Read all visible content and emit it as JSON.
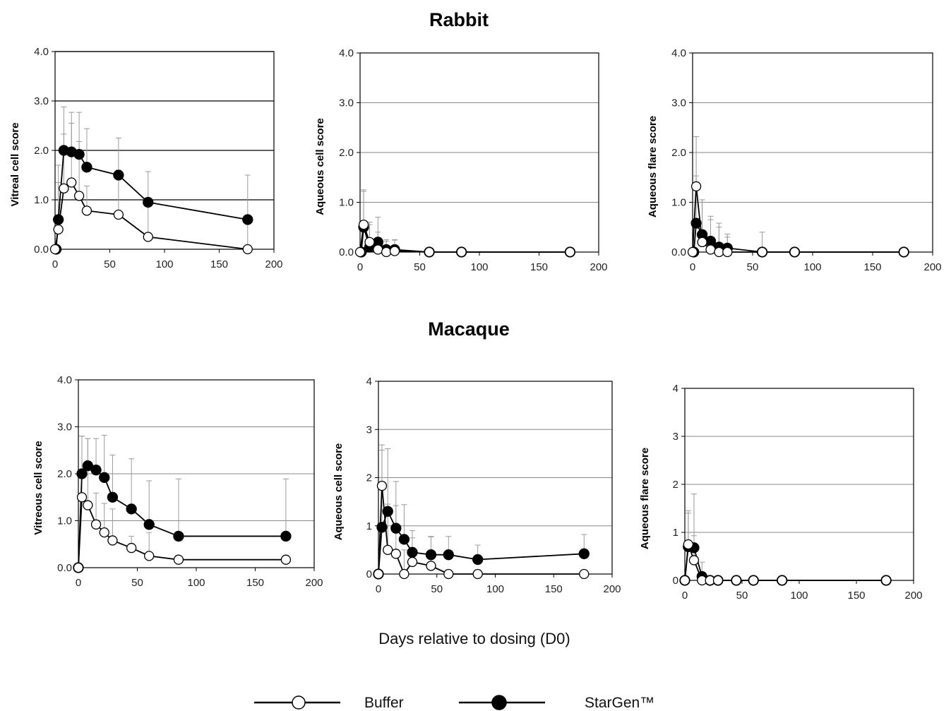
{
  "sections": [
    "Rabbit",
    "Macaque"
  ],
  "common_xlabel": "Days relative to dosing (D0)",
  "legend": [
    {
      "label": "Buffer",
      "marker": "open-circle"
    },
    {
      "label": "StarGen™",
      "marker": "filled-circle"
    }
  ],
  "colors": {
    "line": "#000000",
    "grid": "#888888",
    "errorbar": "#9a9a9a",
    "open_fill": "#ffffff",
    "filled_fill": "#000000"
  },
  "chart_data": [
    {
      "type": "line",
      "section": "Rabbit",
      "ylabel": "Vitreal cell score",
      "xlim": [
        0,
        200
      ],
      "ylim": [
        0,
        4
      ],
      "xticks": [
        "0",
        "50",
        "100",
        "150",
        "200"
      ],
      "yticks": [
        "0.0",
        "1.0",
        "2.0",
        "3.0",
        "4.0"
      ],
      "grid": true,
      "series": [
        {
          "name": "Buffer",
          "x": [
            0,
            3,
            8,
            15,
            22,
            29,
            58,
            85,
            176
          ],
          "y": [
            0,
            0.4,
            1.23,
            1.35,
            1.08,
            0.78,
            0.7,
            0.25,
            0
          ],
          "err": [
            0,
            0.95,
            1.1,
            1.2,
            1.1,
            0.5,
            0.9,
            0.7,
            1.5
          ]
        },
        {
          "name": "StarGen™",
          "x": [
            1,
            3,
            8,
            15,
            22,
            29,
            58,
            85,
            176
          ],
          "y": [
            0,
            0.6,
            2.0,
            1.97,
            1.92,
            1.66,
            1.5,
            0.95,
            0.6
          ],
          "err": [
            0,
            1.1,
            0.88,
            0.8,
            0.85,
            0.78,
            0.75,
            0.62,
            0
          ]
        }
      ]
    },
    {
      "type": "line",
      "section": "Rabbit",
      "ylabel": "Aqueous cell score",
      "xlim": [
        0,
        200
      ],
      "ylim": [
        0,
        4
      ],
      "xticks": [
        "0",
        "50",
        "100",
        "150",
        "200"
      ],
      "yticks": [
        "0.0",
        "1.0",
        "2.0",
        "3.0",
        "4.0"
      ],
      "grid": true,
      "series": [
        {
          "name": "Buffer",
          "x": [
            0,
            3,
            8,
            15,
            22,
            29,
            58,
            85,
            176
          ],
          "y": [
            0,
            0.55,
            0.2,
            0.05,
            0,
            0.02,
            0,
            0,
            0
          ],
          "err": [
            0,
            0.7,
            0.4,
            0.35,
            0.22,
            0.22,
            0,
            0,
            0
          ]
        },
        {
          "name": "StarGen™",
          "x": [
            1,
            3,
            8,
            15,
            22,
            29,
            58,
            85,
            176
          ],
          "y": [
            0,
            0.5,
            0.1,
            0.2,
            0.05,
            0.05,
            0,
            0,
            0
          ],
          "err": [
            0,
            0.72,
            0.45,
            0.5,
            0.2,
            0.2,
            0,
            0,
            0
          ]
        }
      ]
    },
    {
      "type": "line",
      "section": "Rabbit",
      "ylabel": "Aqueous flare score",
      "xlim": [
        0,
        200
      ],
      "ylim": [
        0,
        4
      ],
      "xticks": [
        "0",
        "50",
        "100",
        "150",
        "200"
      ],
      "yticks": [
        "0.0",
        "1.0",
        "2.0",
        "3.0",
        "4.0"
      ],
      "grid": true,
      "series": [
        {
          "name": "Buffer",
          "x": [
            0,
            3,
            8,
            15,
            22,
            29,
            58,
            85,
            176
          ],
          "y": [
            0,
            1.32,
            0.2,
            0.05,
            0,
            0,
            0,
            0,
            0
          ],
          "err": [
            0,
            1.0,
            0.85,
            0.6,
            0.58,
            0.3,
            0.4,
            0,
            0
          ]
        },
        {
          "name": "StarGen™",
          "x": [
            1,
            3,
            8,
            15,
            22,
            29,
            58,
            85,
            176
          ],
          "y": [
            0,
            0.58,
            0.35,
            0.22,
            0.1,
            0.08,
            0,
            0,
            0
          ],
          "err": [
            0,
            0.95,
            0.7,
            0.5,
            0.4,
            0.28,
            0,
            0,
            0
          ]
        }
      ]
    },
    {
      "type": "line",
      "section": "Macaque",
      "ylabel": "Vitreous cell score",
      "xlim": [
        0,
        200
      ],
      "ylim": [
        0,
        4
      ],
      "xticks": [
        "0",
        "50",
        "100",
        "150",
        "200"
      ],
      "yticks": [
        "0.0",
        "1.0",
        "2.0",
        "3.0",
        "4.0"
      ],
      "grid": true,
      "series": [
        {
          "name": "Buffer",
          "x": [
            0,
            3,
            8,
            15,
            22,
            29,
            45,
            60,
            85,
            176
          ],
          "y": [
            0,
            1.5,
            1.33,
            0.92,
            0.75,
            0.58,
            0.42,
            0.25,
            0.17,
            0.17
          ],
          "err": [
            0,
            1.3,
            1.42,
            0.67,
            0.62,
            0.67,
            0.25,
            0.5,
            0,
            0
          ]
        },
        {
          "name": "StarGen™",
          "x": [
            0,
            3,
            8,
            15,
            22,
            29,
            45,
            60,
            85,
            176
          ],
          "y": [
            0,
            2.0,
            2.17,
            2.08,
            1.92,
            1.5,
            1.25,
            0.92,
            0.67,
            0.67
          ],
          "err": [
            0,
            0.8,
            0.58,
            0.67,
            0.9,
            0.9,
            1.07,
            0.93,
            1.22,
            1.22
          ]
        }
      ]
    },
    {
      "type": "line",
      "section": "Macaque",
      "ylabel": "Aqueous cell score",
      "xlim": [
        0,
        200
      ],
      "ylim": [
        0,
        4
      ],
      "xticks": [
        "0",
        "50",
        "100",
        "150",
        "200"
      ],
      "yticks": [
        "0",
        "1",
        "2",
        "3",
        "4"
      ],
      "grid": true,
      "series": [
        {
          "name": "Buffer",
          "x": [
            0,
            3,
            8,
            15,
            22,
            29,
            45,
            60,
            85,
            176
          ],
          "y": [
            0,
            1.83,
            0.5,
            0.42,
            0,
            0.25,
            0.17,
            0,
            0,
            0
          ],
          "err": [
            0,
            0.85,
            0.95,
            1.0,
            0.5,
            0.5,
            0.6,
            0,
            0,
            0
          ]
        },
        {
          "name": "StarGen™",
          "x": [
            0,
            3,
            8,
            15,
            22,
            29,
            45,
            60,
            85,
            176
          ],
          "y": [
            0,
            0.97,
            1.3,
            0.95,
            0.72,
            0.45,
            0.4,
            0.4,
            0.3,
            0.42
          ],
          "err": [
            0,
            1.6,
            1.3,
            0.97,
            0.72,
            0.45,
            0.38,
            0.38,
            0.3,
            0.4
          ]
        }
      ]
    },
    {
      "type": "line",
      "section": "Macaque",
      "ylabel": "Aqueous flare score",
      "xlim": [
        0,
        200
      ],
      "ylim": [
        0,
        4
      ],
      "xticks": [
        "0",
        "50",
        "100",
        "150",
        "200"
      ],
      "yticks": [
        "0",
        "1",
        "2",
        "3",
        "4"
      ],
      "grid": true,
      "series": [
        {
          "name": "Buffer",
          "x": [
            0,
            3,
            8,
            15,
            22,
            29,
            45,
            60,
            85,
            176
          ],
          "y": [
            0,
            0.75,
            0.42,
            0,
            0,
            0,
            0,
            0,
            0,
            0
          ],
          "err": [
            0,
            0.7,
            1.38,
            0,
            0,
            0,
            0,
            0,
            0,
            0
          ]
        },
        {
          "name": "StarGen™",
          "x": [
            0,
            3,
            8,
            15,
            22,
            29,
            45,
            60,
            85,
            176
          ],
          "y": [
            0,
            0.7,
            0.68,
            0.08,
            0,
            0,
            0,
            0,
            0,
            0
          ],
          "err": [
            0,
            0.7,
            0.25,
            0.3,
            0,
            0,
            0,
            0,
            0,
            0
          ]
        }
      ]
    }
  ]
}
